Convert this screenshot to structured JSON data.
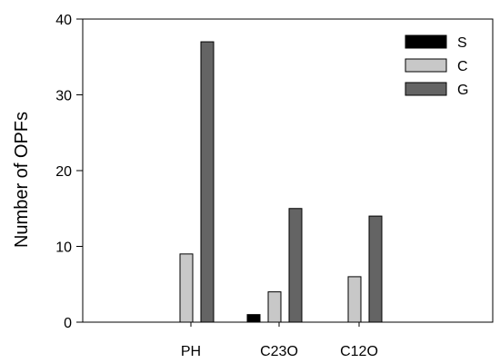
{
  "chart_data": {
    "type": "bar",
    "title": "",
    "xlabel": "",
    "ylabel": "Number of OPFs",
    "categories": [
      "PH",
      "C23O",
      "C12O"
    ],
    "series": [
      {
        "name": "S",
        "values": [
          0,
          1,
          0
        ],
        "color": "#000000"
      },
      {
        "name": "C",
        "values": [
          9,
          4,
          6
        ],
        "color": "#c8c8c8"
      },
      {
        "name": "G",
        "values": [
          37,
          15,
          14
        ],
        "color": "#646464"
      }
    ],
    "ylim": [
      0,
      40
    ],
    "yticks": [
      0,
      10,
      20,
      30,
      40
    ],
    "grid": false,
    "legend_position": "top-right"
  }
}
